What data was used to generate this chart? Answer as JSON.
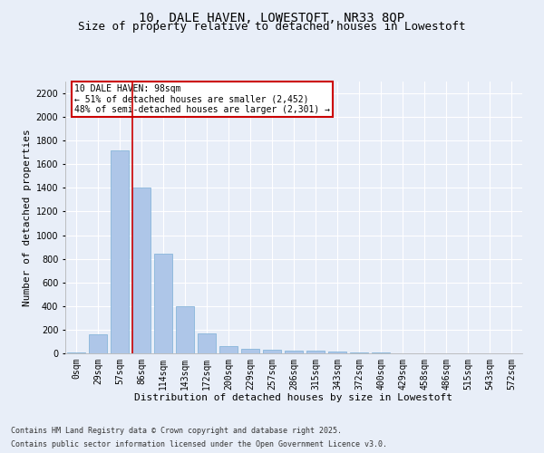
{
  "title_line1": "10, DALE HAVEN, LOWESTOFT, NR33 8QP",
  "title_line2": "Size of property relative to detached houses in Lowestoft",
  "xlabel": "Distribution of detached houses by size in Lowestoft",
  "ylabel": "Number of detached properties",
  "bar_labels": [
    "0sqm",
    "29sqm",
    "57sqm",
    "86sqm",
    "114sqm",
    "143sqm",
    "172sqm",
    "200sqm",
    "229sqm",
    "257sqm",
    "286sqm",
    "315sqm",
    "343sqm",
    "372sqm",
    "400sqm",
    "429sqm",
    "458sqm",
    "486sqm",
    "515sqm",
    "543sqm",
    "572sqm"
  ],
  "bar_values": [
    10,
    160,
    1720,
    1400,
    840,
    400,
    165,
    65,
    40,
    30,
    25,
    25,
    15,
    5,
    5,
    3,
    3,
    2,
    1,
    1,
    1
  ],
  "bar_color": "#aec6e8",
  "bar_edgecolor": "#7aaed6",
  "ylim_max": 2300,
  "yticks": [
    0,
    200,
    400,
    600,
    800,
    1000,
    1200,
    1400,
    1600,
    1800,
    2000,
    2200
  ],
  "vline_color": "#cc0000",
  "vline_index": 3,
  "annotation_text": "10 DALE HAVEN: 98sqm\n← 51% of detached houses are smaller (2,452)\n48% of semi-detached houses are larger (2,301) →",
  "annotation_box_edgecolor": "#cc0000",
  "background_color": "#e8eef8",
  "plot_background": "#e8eef8",
  "footer_line1": "Contains HM Land Registry data © Crown copyright and database right 2025.",
  "footer_line2": "Contains public sector information licensed under the Open Government Licence v3.0.",
  "grid_color": "#ffffff",
  "title_fontsize": 10,
  "subtitle_fontsize": 9,
  "axis_label_fontsize": 8,
  "tick_fontsize": 7,
  "footer_fontsize": 6
}
